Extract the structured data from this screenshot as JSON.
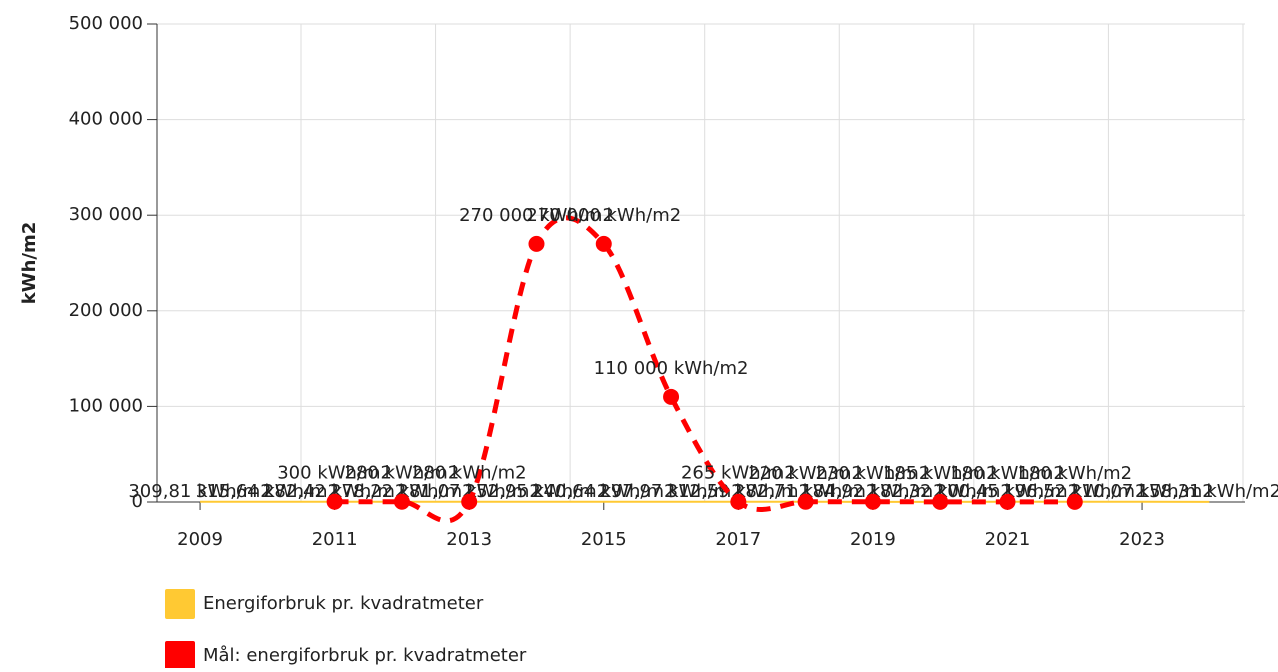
{
  "chart_data": {
    "type": "line",
    "y_label": "kWh/m2",
    "xlim": [
      2008.36,
      2024.53
    ],
    "xticks": [
      2009,
      2011,
      2013,
      2015,
      2017,
      2019,
      2021,
      2023
    ],
    "xgrid": [
      2010.5,
      2012.5,
      2014.5,
      2016.5,
      2018.5,
      2020.5,
      2022.5,
      2024.5
    ],
    "ylim": [
      0,
      500000
    ],
    "yticks": [
      {
        "value": 0,
        "label": "0"
      },
      {
        "value": 100000,
        "label": "100 000"
      },
      {
        "value": 200000,
        "label": "200 000"
      },
      {
        "value": 300000,
        "label": "300 000"
      },
      {
        "value": 400000,
        "label": "400 000"
      },
      {
        "value": 500000,
        "label": "500 000"
      }
    ],
    "grid": true,
    "series": [
      {
        "name": "Energiforbruk pr. kvadratmeter",
        "color": "#ffc933",
        "x": [
          2009,
          2010,
          2011,
          2012,
          2013,
          2014,
          2015,
          2016,
          2017,
          2018,
          2019,
          2020,
          2021,
          2022,
          2023,
          2024
        ],
        "values": [
          309.81,
          315.64,
          282.42,
          278.22,
          281.07,
          252.95,
          240.64,
          297.97,
          312.59,
          282.71,
          184.92,
          182.32,
          200.45,
          196.52,
          210.07,
          158.31
        ],
        "value_labels": [
          "309,81 kWh/m2",
          "315,64 kWh/m2",
          "282,42 kWh/m2",
          "278,22 kWh/m2",
          "281,07 kWh/m2",
          "252,95 kWh/m2",
          "240,64 kWh/m2",
          "297,97 kWh/m2",
          "312,59 kWh/m2",
          "282,71 kWh/m2",
          "184,92 kWh/m2",
          "182,32 kWh/m2",
          "200,45 kWh/m2",
          "196,52 kWh/m2",
          "210,07 kWh/m2",
          "158,31 kWh/m2"
        ]
      },
      {
        "name": "Mål: energiforbruk pr. kvadratmeter",
        "color": "#ff0000",
        "x": [
          2011,
          2012,
          2013,
          2014,
          2015,
          2016,
          2017,
          2018,
          2019,
          2020,
          2021,
          2022
        ],
        "values": [
          300,
          280,
          280,
          270000,
          270000,
          110000,
          265,
          220,
          230,
          185,
          180,
          180
        ],
        "value_labels": [
          "300 kWh/m2",
          "280 kWh/m2",
          "280 kWh/m2",
          "270 000 kWh/m2",
          "270 000 kWh/m2",
          "110 000 kWh/m2",
          "265 kWh/m2",
          "220 kWh/m2",
          "230 kWh/m2",
          "185 kWh/m2",
          "180 kWh/m2",
          "180 kWh/m2"
        ]
      }
    ]
  }
}
